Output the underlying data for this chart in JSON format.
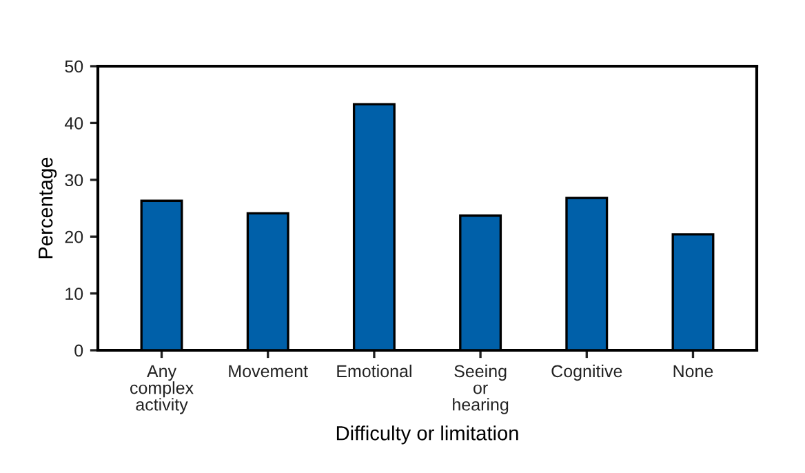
{
  "chart_data": {
    "type": "bar",
    "xlabel": "Difficulty or limitation",
    "ylabel": "Percentage",
    "categories": [
      "Any\ncomplex\nactivity",
      "Movement",
      "Emotional",
      "Seeing\nor\nhearing",
      "Cognitive",
      "None"
    ],
    "values": [
      26.3,
      24.1,
      43.3,
      23.7,
      26.8,
      20.4
    ],
    "color": "#0060a9",
    "ylim": [
      0,
      50
    ],
    "yticks": [
      0,
      10,
      20,
      30,
      40,
      50
    ],
    "grid": false
  }
}
